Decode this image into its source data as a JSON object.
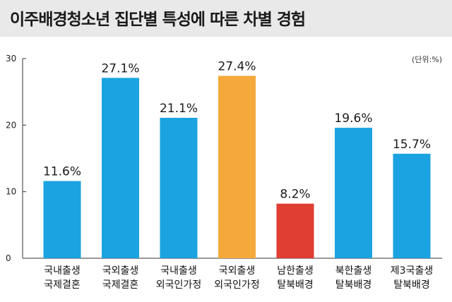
{
  "header": {
    "title": "이주배경청소년 집단별 특성에 따른 차별 경험"
  },
  "chart_data": {
    "type": "bar",
    "title": "이주배경청소년 집단별 특성에 따른 차별 경험",
    "unit_label": "(단위:%)",
    "categories": [
      [
        "국내출생",
        "국제결혼"
      ],
      [
        "국외출생",
        "국제결혼"
      ],
      [
        "국내출생",
        "외국인가정"
      ],
      [
        "국외출생",
        "외국인가정"
      ],
      [
        "남한출생",
        "탈북배경"
      ],
      [
        "북한출생",
        "탈북배경"
      ],
      [
        "제3국출생",
        "탈북배경"
      ]
    ],
    "values": [
      11.6,
      27.1,
      21.1,
      27.4,
      8.2,
      19.6,
      15.7
    ],
    "value_labels": [
      "11.6%",
      "27.1%",
      "21.1%",
      "27.4%",
      "8.2%",
      "19.6%",
      "15.7%"
    ],
    "bar_colors": [
      "#1aa3e0",
      "#1aa3e0",
      "#1aa3e0",
      "#f4a93a",
      "#e03d33",
      "#1aa3e0",
      "#1aa3e0"
    ],
    "yticks": [
      0,
      10,
      20,
      30
    ],
    "ylim": [
      0,
      30
    ],
    "grid": false
  }
}
